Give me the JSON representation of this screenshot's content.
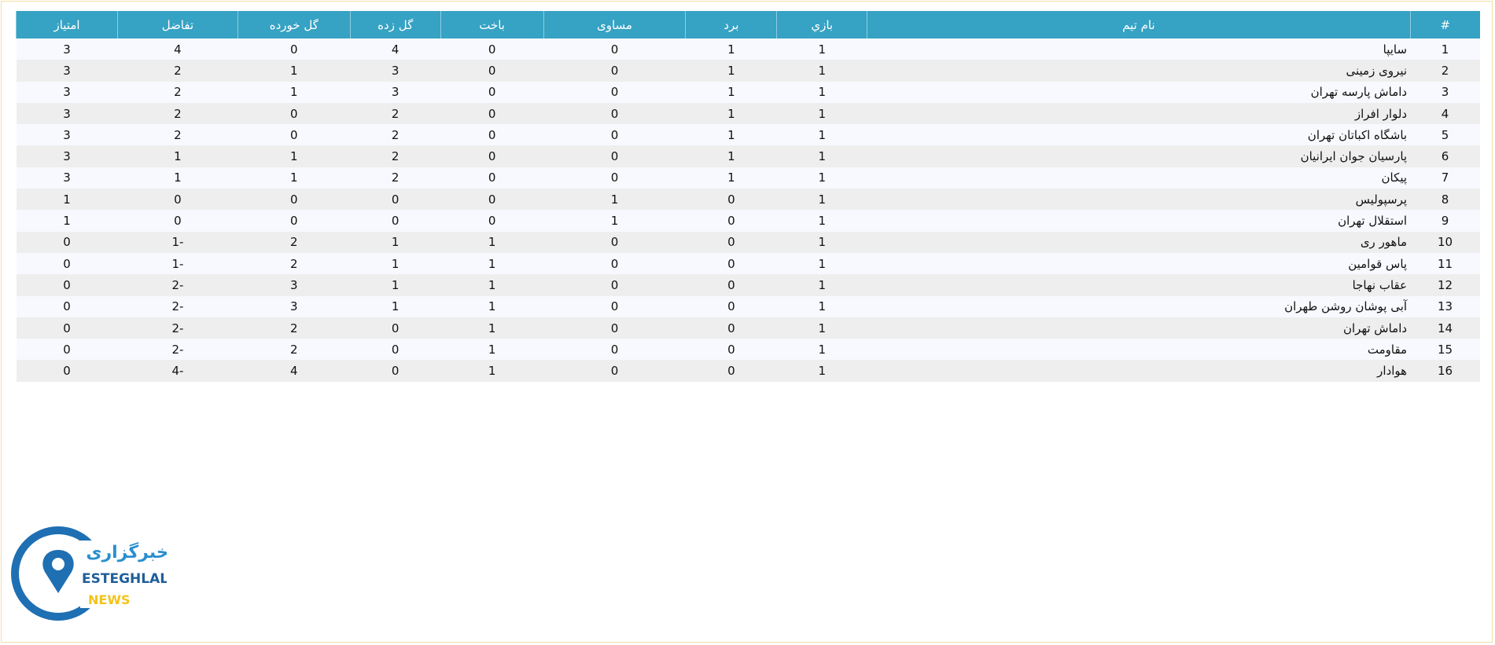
{
  "table": {
    "header": [
      "#",
      "نام تیم",
      "بازي",
      "برد",
      "مساوی",
      "باخت",
      "گل زده",
      "گل خورده",
      "تفاضل",
      "امتیاز"
    ],
    "rows": [
      [
        1,
        "سایپا",
        1,
        1,
        0,
        0,
        4,
        0,
        4,
        3
      ],
      [
        2,
        "نیروی زمینی",
        1,
        1,
        0,
        0,
        3,
        1,
        2,
        3
      ],
      [
        3,
        "داماش پارسه تهران",
        1,
        1,
        0,
        0,
        3,
        1,
        2,
        3
      ],
      [
        4,
        "دلوار افراز",
        1,
        1,
        0,
        0,
        2,
        0,
        2,
        3
      ],
      [
        5,
        "باشگاه اکباتان تهران",
        1,
        1,
        0,
        0,
        2,
        0,
        2,
        3
      ],
      [
        6,
        "پارسیان جوان ایرانیان",
        1,
        1,
        0,
        0,
        2,
        1,
        1,
        3
      ],
      [
        7,
        "پیکان",
        1,
        1,
        0,
        0,
        2,
        1,
        1,
        3
      ],
      [
        8,
        "پرسپولیس",
        1,
        0,
        1,
        0,
        0,
        0,
        0,
        1
      ],
      [
        9,
        "استقلال تهران",
        1,
        0,
        1,
        0,
        0,
        0,
        0,
        1
      ],
      [
        10,
        "ماهور ری",
        1,
        0,
        0,
        1,
        1,
        2,
        -1,
        0
      ],
      [
        11,
        "پاس قوامین",
        1,
        0,
        0,
        1,
        1,
        2,
        -1,
        0
      ],
      [
        12,
        "عقاب نهاجا",
        1,
        0,
        0,
        1,
        1,
        3,
        -2,
        0
      ],
      [
        13,
        "آبی پوشان روشن طهران",
        1,
        0,
        0,
        1,
        1,
        3,
        -2,
        0
      ],
      [
        14,
        "داماش تهران",
        1,
        0,
        0,
        1,
        0,
        2,
        -2,
        0
      ],
      [
        15,
        "مقاومت",
        1,
        0,
        0,
        1,
        0,
        2,
        -2,
        0
      ],
      [
        16,
        "هوادار",
        1,
        0,
        0,
        1,
        0,
        4,
        -4,
        0
      ]
    ]
  },
  "logo": {
    "brand": "خبرگزاری",
    "name": "ESTEGHLAL",
    "sub": "NEWS"
  }
}
